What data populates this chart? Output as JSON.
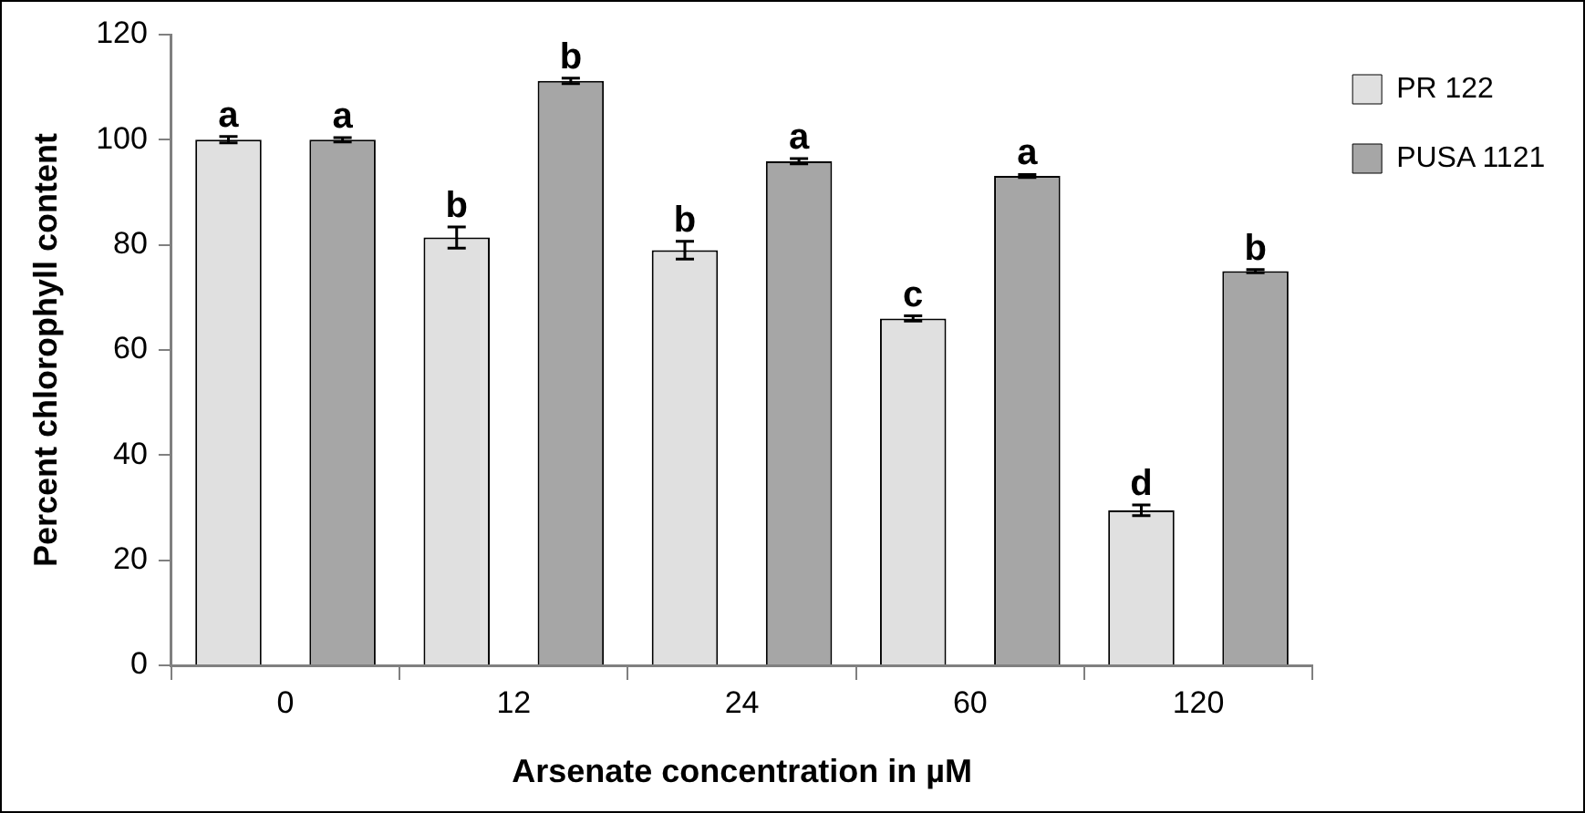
{
  "chart_data": {
    "type": "bar",
    "xlabel": "Arsenate concentration in µM",
    "ylabel": "Percent chlorophyll content",
    "categories": [
      "0",
      "12",
      "24",
      "60",
      "120"
    ],
    "series": [
      {
        "name": "PR 122",
        "color": "#e0e0e0",
        "values": [
          100,
          81.4,
          79,
          66,
          29.5
        ],
        "errors": [
          0.6,
          2,
          1.7,
          0.5,
          1
        ],
        "value_labels": [
          "a",
          "b",
          "b",
          "c",
          "d"
        ]
      },
      {
        "name": "PUSA 1121",
        "color": "#a6a6a6",
        "values": [
          100,
          111.2,
          95.9,
          93.1,
          75
        ],
        "errors": [
          0.4,
          0.5,
          0.5,
          0.3,
          0.3
        ],
        "value_labels": [
          "a",
          "b",
          "a",
          "a",
          "b"
        ]
      }
    ],
    "ylim": [
      0,
      120
    ],
    "yticks": [
      0,
      20,
      40,
      60,
      80,
      100,
      120
    ],
    "grid": false,
    "legend": "top right"
  }
}
